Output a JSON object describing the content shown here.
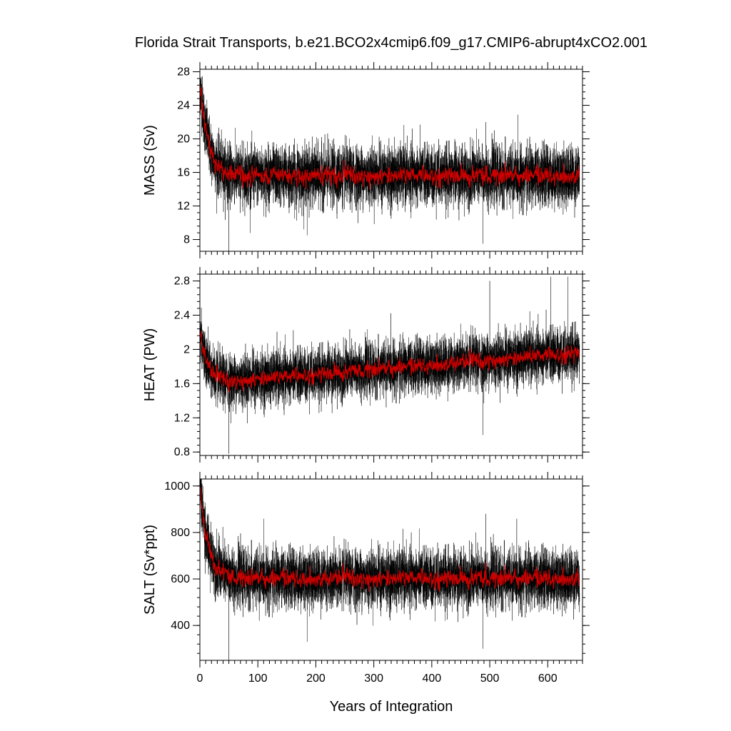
{
  "chart_data": {
    "type": "line",
    "title": "Florida Strait Transports, b.e21.BCO2x4cmip6.f09_g17.CMIP6-abrupt4xCO2.001",
    "xlabel": "Years of Integration",
    "xlim": [
      0,
      660
    ],
    "xticks": [
      0,
      100,
      200,
      300,
      400,
      500,
      600
    ],
    "colors": {
      "raw": "#000000",
      "smoothed": "#cc0000"
    },
    "panels": [
      {
        "ylabel": "MASS (Sv)",
        "ylim": [
          6.6,
          28.3
        ],
        "yticks": [
          8,
          12,
          16,
          20,
          24,
          28
        ],
        "start": 27.0,
        "equilibrium": 15.6,
        "decay_years": 14,
        "trend_per_year": 0.0,
        "noise": 1.7,
        "extremes": [
          [
            50,
            6.6
          ],
          [
            488,
            7.5
          ],
          [
            493,
            22.0
          ],
          [
            185,
            8.5
          ]
        ]
      },
      {
        "ylabel": "HEAT (PW)",
        "ylim": [
          0.76,
          2.88
        ],
        "yticks": [
          0.8,
          1.2,
          1.6,
          2.0,
          2.4,
          2.8
        ],
        "start": 2.25,
        "equilibrium": 1.62,
        "decay_years": 12,
        "trend_per_year": 0.00055,
        "noise": 0.15,
        "extremes": [
          [
            50,
            0.78
          ],
          [
            500,
            2.8
          ],
          [
            605,
            2.85
          ],
          [
            635,
            2.85
          ],
          [
            488,
            1.0
          ]
        ]
      },
      {
        "ylabel": "SALT (Sv*ppt)",
        "ylim": [
          250,
          1030
        ],
        "yticks": [
          400,
          600,
          800,
          1000
        ],
        "start": 1000,
        "equilibrium": 602,
        "decay_years": 14,
        "trend_per_year": 0.0,
        "noise": 60,
        "extremes": [
          [
            50,
            252
          ],
          [
            488,
            300
          ],
          [
            493,
            880
          ],
          [
            185,
            330
          ]
        ]
      }
    ]
  }
}
